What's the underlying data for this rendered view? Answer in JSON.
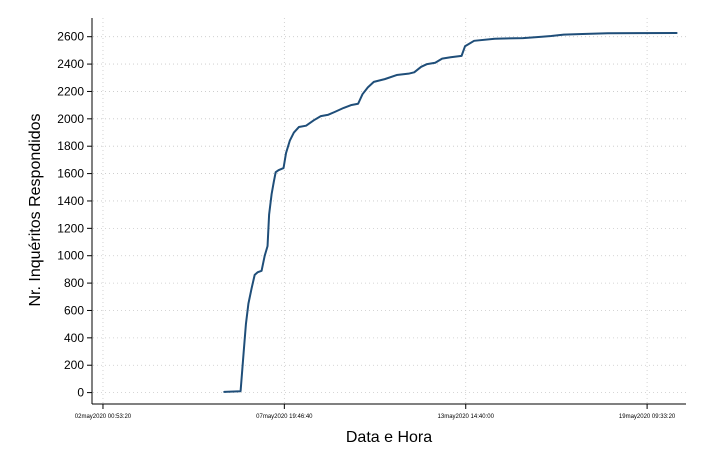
{
  "chart_data": {
    "type": "line",
    "title": "",
    "xlabel": "Data e Hora",
    "ylabel": "Nr. Inquéritos Respondidos",
    "x_ticks": [
      {
        "label": "02may2020 00:53:20",
        "t": 0
      },
      {
        "label": "07may2020 19:46:40",
        "t": 5.786
      },
      {
        "label": "13may2020 14:40:00",
        "t": 11.573
      },
      {
        "label": "19may2020 09:33:20",
        "t": 17.359
      }
    ],
    "x_unit": "days since 02may2020 00:53:20",
    "xlim": [
      -0.35,
      18.6
    ],
    "ylim": [
      0,
      2700
    ],
    "y_ticks": [
      0,
      200,
      400,
      600,
      800,
      1000,
      1200,
      1400,
      1600,
      1800,
      2000,
      2200,
      2400,
      2600
    ],
    "grid": true,
    "color": "#1f4e79",
    "series": [
      {
        "name": "",
        "points": [
          [
            3.87,
            5
          ],
          [
            4.39,
            10
          ],
          [
            4.49,
            300
          ],
          [
            4.56,
            500
          ],
          [
            4.64,
            650
          ],
          [
            4.74,
            760
          ],
          [
            4.84,
            860
          ],
          [
            4.94,
            880
          ],
          [
            5.06,
            890
          ],
          [
            5.16,
            1000
          ],
          [
            5.25,
            1070
          ],
          [
            5.3,
            1300
          ],
          [
            5.38,
            1450
          ],
          [
            5.45,
            1540
          ],
          [
            5.51,
            1610
          ],
          [
            5.6,
            1625
          ],
          [
            5.76,
            1640
          ],
          [
            5.84,
            1750
          ],
          [
            5.96,
            1840
          ],
          [
            6.09,
            1900
          ],
          [
            6.25,
            1940
          ],
          [
            6.48,
            1950
          ],
          [
            6.73,
            1990
          ],
          [
            6.95,
            2020
          ],
          [
            7.19,
            2030
          ],
          [
            7.39,
            2050
          ],
          [
            7.68,
            2080
          ],
          [
            7.91,
            2100
          ],
          [
            8.14,
            2110
          ],
          [
            8.28,
            2180
          ],
          [
            8.45,
            2230
          ],
          [
            8.64,
            2270
          ],
          [
            8.99,
            2290
          ],
          [
            9.37,
            2320
          ],
          [
            9.75,
            2330
          ],
          [
            9.93,
            2340
          ],
          [
            10.15,
            2380
          ],
          [
            10.34,
            2400
          ],
          [
            10.6,
            2410
          ],
          [
            10.82,
            2440
          ],
          [
            11.09,
            2450
          ],
          [
            11.44,
            2460
          ],
          [
            11.55,
            2530
          ],
          [
            11.84,
            2570
          ],
          [
            12.5,
            2585
          ],
          [
            13.4,
            2590
          ],
          [
            14.0,
            2600
          ],
          [
            14.3,
            2605
          ],
          [
            14.7,
            2615
          ],
          [
            15.3,
            2620
          ],
          [
            16.1,
            2625
          ],
          [
            18.3,
            2627
          ]
        ]
      }
    ]
  }
}
